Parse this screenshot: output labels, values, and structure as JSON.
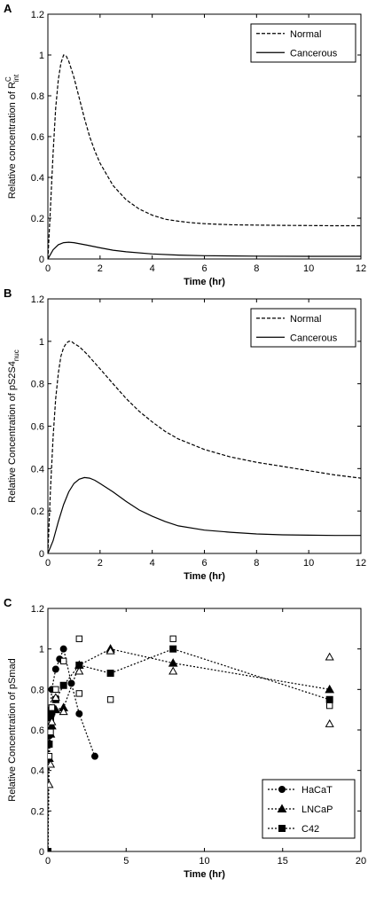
{
  "chart_data": [
    {
      "panel_label": "A",
      "type": "line",
      "xlabel": "Time (hr)",
      "ylabel_prefix": "Relative concentration of R",
      "ylabel_sup": "C",
      "ylabel_sub": "int",
      "xlim": [
        0,
        12
      ],
      "ylim": [
        0,
        1.2
      ],
      "xticks": [
        "0",
        "2",
        "4",
        "6",
        "8",
        "10",
        "12"
      ],
      "yticks": [
        "0",
        "0.2",
        "0.4",
        "0.6",
        "0.8",
        "1",
        "1.2"
      ],
      "grid": false,
      "legend_position": "top-right",
      "series": [
        {
          "name": "Normal",
          "style": "dashed",
          "x": [
            0,
            0.1,
            0.2,
            0.3,
            0.4,
            0.5,
            0.6,
            0.7,
            0.8,
            0.9,
            1.0,
            1.2,
            1.4,
            1.6,
            1.8,
            2.0,
            2.5,
            3.0,
            3.5,
            4.0,
            4.5,
            5.0,
            5.5,
            6.0,
            7.0,
            8.0,
            9.0,
            10.0,
            11.0,
            12.0
          ],
          "y": [
            0,
            0.25,
            0.52,
            0.74,
            0.88,
            0.96,
            1.0,
            0.995,
            0.97,
            0.93,
            0.89,
            0.79,
            0.69,
            0.6,
            0.53,
            0.47,
            0.36,
            0.29,
            0.245,
            0.215,
            0.195,
            0.185,
            0.178,
            0.173,
            0.168,
            0.166,
            0.165,
            0.164,
            0.163,
            0.163
          ]
        },
        {
          "name": "Cancerous",
          "style": "solid",
          "x": [
            0,
            0.2,
            0.4,
            0.6,
            0.8,
            1.0,
            1.5,
            2.0,
            2.5,
            3.0,
            4.0,
            5.0,
            6.0,
            8.0,
            10.0,
            12.0
          ],
          "y": [
            0,
            0.045,
            0.07,
            0.08,
            0.082,
            0.08,
            0.068,
            0.055,
            0.043,
            0.035,
            0.025,
            0.019,
            0.016,
            0.014,
            0.013,
            0.013
          ]
        }
      ]
    },
    {
      "panel_label": "B",
      "type": "line",
      "xlabel": "Time (hr)",
      "ylabel_prefix": "Relative Concentration of pS2S4",
      "ylabel_sup": "",
      "ylabel_sub": "nuc",
      "xlim": [
        0,
        12
      ],
      "ylim": [
        0,
        1.2
      ],
      "xticks": [
        "0",
        "2",
        "4",
        "6",
        "8",
        "10",
        "12"
      ],
      "yticks": [
        "0",
        "0.2",
        "0.4",
        "0.6",
        "0.8",
        "1",
        "1.2"
      ],
      "grid": false,
      "legend_position": "top-right",
      "series": [
        {
          "name": "Normal",
          "style": "dashed",
          "x": [
            0,
            0.1,
            0.2,
            0.3,
            0.4,
            0.5,
            0.6,
            0.7,
            0.8,
            0.9,
            1.0,
            1.2,
            1.5,
            2.0,
            2.5,
            3.0,
            3.5,
            4.0,
            4.5,
            5.0,
            6.0,
            7.0,
            8.0,
            9.0,
            10.0,
            11.0,
            12.0
          ],
          "y": [
            0,
            0.3,
            0.55,
            0.73,
            0.85,
            0.93,
            0.97,
            0.99,
            1.0,
            1.0,
            0.99,
            0.975,
            0.94,
            0.87,
            0.8,
            0.73,
            0.67,
            0.62,
            0.575,
            0.54,
            0.49,
            0.455,
            0.43,
            0.41,
            0.39,
            0.37,
            0.355
          ]
        },
        {
          "name": "Cancerous",
          "style": "solid",
          "x": [
            0,
            0.2,
            0.4,
            0.6,
            0.8,
            1.0,
            1.2,
            1.4,
            1.6,
            1.8,
            2.0,
            2.5,
            3.0,
            3.5,
            4.0,
            4.5,
            5.0,
            6.0,
            7.0,
            8.0,
            9.0,
            10.0,
            11.0,
            12.0
          ],
          "y": [
            0,
            0.06,
            0.15,
            0.23,
            0.29,
            0.33,
            0.35,
            0.358,
            0.355,
            0.345,
            0.33,
            0.29,
            0.245,
            0.205,
            0.175,
            0.15,
            0.13,
            0.11,
            0.1,
            0.092,
            0.088,
            0.086,
            0.085,
            0.085
          ]
        }
      ]
    },
    {
      "panel_label": "C",
      "type": "scatter",
      "xlabel": "Time (hr)",
      "ylabel_prefix": "Relative Concentration of pSmad",
      "ylabel_sup": "",
      "ylabel_sub": "",
      "xlim": [
        0,
        20
      ],
      "ylim": [
        0,
        1.2
      ],
      "xticks": [
        "0",
        "5",
        "10",
        "15",
        "20"
      ],
      "yticks": [
        "0",
        "0.2",
        "0.4",
        "0.6",
        "0.8",
        "1",
        "1.2"
      ],
      "grid": false,
      "legend_position": "bottom-right",
      "series": [
        {
          "name": "HaCaT",
          "marker": "circle",
          "style": "dashed",
          "x": [
            0,
            0.08,
            0.17,
            0.25,
            0.5,
            0.75,
            1.0,
            1.5,
            2.0,
            3.0
          ],
          "y": [
            0,
            0.57,
            0.7,
            0.8,
            0.9,
            0.95,
            1.0,
            0.83,
            0.68,
            0.47
          ]
        },
        {
          "name": "LNCaP",
          "marker": "triangle",
          "style": "dashed",
          "x": [
            0,
            0.08,
            0.17,
            0.25,
            0.5,
            1.0,
            2.0,
            4.0,
            8.0,
            18.0
          ],
          "y": [
            0,
            0.46,
            0.58,
            0.62,
            0.7,
            0.71,
            0.92,
            1.0,
            0.93,
            0.8
          ]
        },
        {
          "name": "C42",
          "marker": "square",
          "style": "dashed",
          "x": [
            0,
            0.08,
            0.17,
            0.25,
            0.5,
            1.0,
            2.0,
            4.0,
            8.0,
            18.0
          ],
          "y": [
            0,
            0.53,
            0.66,
            0.69,
            0.75,
            0.82,
            0.92,
            0.88,
            1.0,
            0.75
          ]
        }
      ],
      "error_markers": [
        {
          "marker": "triangle",
          "x": [
            0.08,
            0.17,
            0.25,
            0.5,
            1.0,
            2.0,
            4.0,
            8.0,
            18.0,
            18.0
          ],
          "y": [
            0.33,
            0.43,
            0.64,
            0.76,
            0.69,
            0.89,
            0.99,
            0.89,
            0.96,
            0.63
          ]
        },
        {
          "marker": "square",
          "x": [
            0.08,
            0.17,
            0.25,
            0.5,
            1.0,
            2.0,
            2.0,
            4.0,
            8.0,
            18.0
          ],
          "y": [
            0.47,
            0.59,
            0.71,
            0.8,
            0.94,
            1.05,
            0.78,
            0.75,
            1.05,
            0.72
          ]
        }
      ]
    }
  ]
}
